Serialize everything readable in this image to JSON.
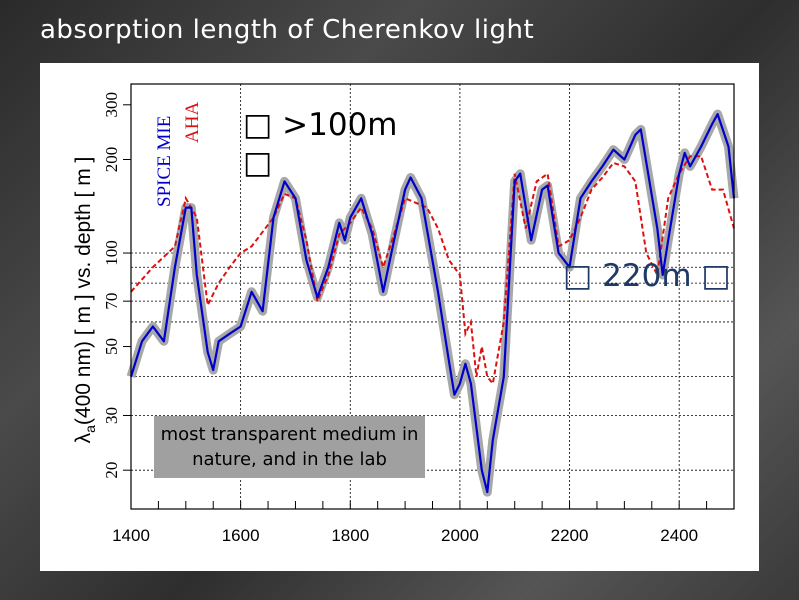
{
  "slide": {
    "title": "absorption length of Cherenkov light",
    "annotation_top": "□ >100m □",
    "annotation_right": "□ 220m □",
    "note": "most transparent medium in nature, and in the lab"
  },
  "chart_data": {
    "type": "line",
    "title": "",
    "xlabel": "",
    "ylabel": "λa(400 nm) [ m ] vs. depth [ m ]",
    "ylabel_main": "λ",
    "ylabel_sub": "a",
    "ylabel_rest": "(400 nm) [ m ] vs. depth [ m ]",
    "xlim": [
      1400,
      2500
    ],
    "ylim": [
      15,
      350
    ],
    "yscale": "log",
    "grid": true,
    "legend_placement": "top-left",
    "xticks": [
      "1400",
      "1600",
      "1800",
      "2000",
      "2200",
      "2400"
    ],
    "yticks": [
      "20",
      "30",
      "50",
      "70",
      "100",
      "200",
      "300"
    ],
    "series": [
      {
        "name": "SPICE MIE",
        "color": "#0000cc",
        "band_color": "#a8a8a8",
        "style": "solid",
        "x": [
          1400,
          1420,
          1440,
          1460,
          1480,
          1500,
          1510,
          1520,
          1540,
          1550,
          1560,
          1580,
          1600,
          1620,
          1640,
          1660,
          1680,
          1700,
          1720,
          1740,
          1760,
          1780,
          1790,
          1800,
          1820,
          1840,
          1860,
          1880,
          1900,
          1910,
          1930,
          1960,
          1980,
          1990,
          2000,
          2010,
          2020,
          2040,
          2050,
          2060,
          2080,
          2100,
          2110,
          2130,
          2150,
          2160,
          2180,
          2200,
          2220,
          2240,
          2260,
          2280,
          2300,
          2320,
          2330,
          2360,
          2370,
          2380,
          2400,
          2410,
          2420,
          2440,
          2460,
          2470,
          2490,
          2500
        ],
        "y": [
          40,
          52,
          58,
          52,
          90,
          140,
          140,
          85,
          48,
          42,
          52,
          55,
          58,
          75,
          65,
          130,
          170,
          150,
          95,
          72,
          90,
          125,
          110,
          130,
          150,
          115,
          75,
          110,
          160,
          175,
          150,
          75,
          45,
          35,
          38,
          44,
          38,
          20,
          17,
          25,
          40,
          170,
          180,
          110,
          160,
          165,
          100,
          90,
          150,
          170,
          190,
          215,
          200,
          240,
          250,
          120,
          85,
          110,
          180,
          210,
          190,
          220,
          260,
          280,
          220,
          150
        ]
      },
      {
        "name": "AHA",
        "color": "#dd1111",
        "style": "dashed",
        "x": [
          1400,
          1440,
          1480,
          1500,
          1520,
          1540,
          1560,
          1580,
          1600,
          1620,
          1660,
          1680,
          1700,
          1720,
          1740,
          1760,
          1780,
          1800,
          1820,
          1840,
          1860,
          1880,
          1900,
          1920,
          1940,
          1960,
          1980,
          2000,
          2010,
          2020,
          2030,
          2040,
          2050,
          2060,
          2080,
          2100,
          2120,
          2140,
          2160,
          2180,
          2200,
          2220,
          2240,
          2260,
          2280,
          2300,
          2320,
          2340,
          2360,
          2380,
          2400,
          2420,
          2440,
          2460,
          2480,
          2500
        ],
        "y": [
          75,
          90,
          105,
          150,
          130,
          68,
          80,
          90,
          100,
          105,
          130,
          155,
          150,
          110,
          70,
          85,
          115,
          125,
          140,
          120,
          90,
          115,
          150,
          145,
          140,
          120,
          95,
          85,
          55,
          60,
          40,
          50,
          40,
          38,
          60,
          180,
          120,
          170,
          180,
          105,
          110,
          130,
          160,
          175,
          195,
          190,
          170,
          100,
          85,
          150,
          180,
          205,
          205,
          160,
          160,
          120
        ]
      }
    ]
  }
}
